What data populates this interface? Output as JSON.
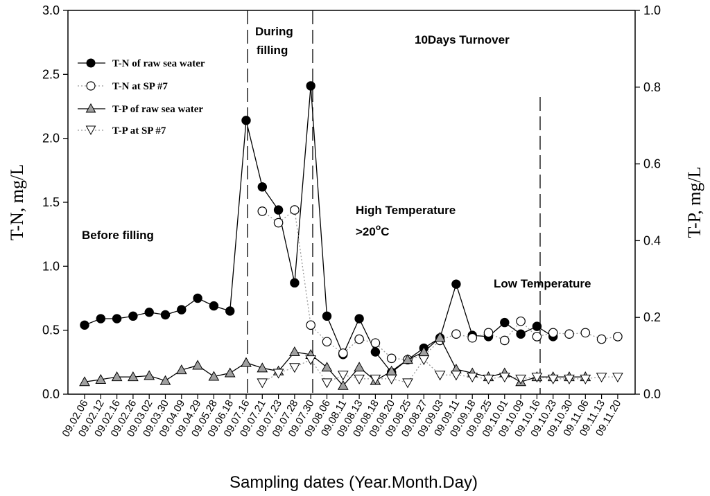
{
  "chart_data": {
    "type": "line",
    "xlabel": "Sampling dates (Year.Month.Day)",
    "ylabel_left": "T-N, mg/L",
    "ylabel_right": "T-P, mg/L",
    "ylim_left": [
      0,
      3.0
    ],
    "ylim_right": [
      0,
      1.0
    ],
    "yticks_left": [
      "0.0",
      "0.5",
      "1.0",
      "1.5",
      "2.0",
      "2.5",
      "3.0"
    ],
    "yticks_right": [
      "0.0",
      "0.2",
      "0.4",
      "0.6",
      "0.8",
      "1.0"
    ],
    "yticks_left_values": [
      0,
      0.5,
      1.0,
      1.5,
      2.0,
      2.5,
      3.0
    ],
    "yticks_right_values": [
      0,
      0.2,
      0.4,
      0.6,
      0.8,
      1.0
    ],
    "categories": [
      "09.02.06",
      "09.02.12",
      "09.02.16",
      "09.02.26",
      "09.03.02",
      "09.03.30",
      "09.04.09",
      "09.04.29",
      "09.05.28",
      "09.06.18",
      "09.07.16",
      "09.07.21",
      "09.07.23",
      "09.07.28",
      "09.07.30",
      "09.08.06",
      "09.08.11",
      "09.08.13",
      "09.08.18",
      "09.08.20",
      "09.08.25",
      "09.08.27",
      "09.09.03",
      "09.09.11",
      "09.09.18",
      "09.09.25",
      "09.10.01",
      "09.10.09",
      "09.10.16",
      "09.10.23",
      "09.10.30",
      "09.11.06",
      "09.11.13",
      "09.11.20"
    ],
    "series": [
      {
        "name": "T-N of raw sea water",
        "axis": "left",
        "marker": "filled-circle",
        "line": "solid",
        "points": [
          [
            0,
            0.54
          ],
          [
            1,
            0.59
          ],
          [
            2,
            0.59
          ],
          [
            3,
            0.61
          ],
          [
            4,
            0.64
          ],
          [
            5,
            0.62
          ],
          [
            6,
            0.66
          ],
          [
            7,
            0.75
          ],
          [
            8,
            0.69
          ],
          [
            9,
            0.65
          ],
          [
            10,
            2.14
          ],
          [
            11,
            1.62
          ],
          [
            12,
            1.44
          ],
          [
            13,
            0.87
          ],
          [
            14,
            2.41
          ],
          [
            15,
            0.61
          ],
          [
            16,
            0.31
          ],
          [
            17,
            0.59
          ],
          [
            18,
            0.33
          ],
          [
            19,
            0.17
          ],
          [
            20,
            0.27
          ],
          [
            21,
            0.36
          ],
          [
            22,
            0.44
          ],
          [
            23,
            0.86
          ],
          [
            24,
            0.46
          ],
          [
            25,
            0.45
          ],
          [
            26,
            0.56
          ],
          [
            27,
            0.47
          ],
          [
            28,
            0.53
          ],
          [
            29,
            0.45
          ]
        ]
      },
      {
        "name": "T-N at SP #7",
        "axis": "left",
        "marker": "open-circle",
        "line": "dotted",
        "points": [
          [
            11,
            1.43
          ],
          [
            12,
            1.34
          ],
          [
            13,
            1.44
          ],
          [
            14,
            0.54
          ],
          [
            15,
            0.41
          ],
          [
            16,
            0.32
          ],
          [
            17,
            0.43
          ],
          [
            18,
            0.4
          ],
          [
            19,
            0.28
          ],
          [
            20,
            0.27
          ],
          [
            21,
            0.3
          ],
          [
            22,
            0.42
          ],
          [
            23,
            0.47
          ],
          [
            24,
            0.44
          ],
          [
            25,
            0.48
          ],
          [
            26,
            0.42
          ],
          [
            27,
            0.57
          ],
          [
            28,
            0.45
          ],
          [
            29,
            0.48
          ],
          [
            30,
            0.47
          ],
          [
            31,
            0.48
          ],
          [
            32,
            0.43
          ],
          [
            33,
            0.45
          ]
        ]
      },
      {
        "name": "T-P of raw sea water",
        "axis": "right",
        "marker": "filled-triangle-up",
        "line": "solid",
        "points": [
          [
            0,
            0.032
          ],
          [
            1,
            0.038
          ],
          [
            2,
            0.045
          ],
          [
            3,
            0.045
          ],
          [
            4,
            0.048
          ],
          [
            5,
            0.035
          ],
          [
            6,
            0.063
          ],
          [
            7,
            0.075
          ],
          [
            8,
            0.046
          ],
          [
            9,
            0.055
          ],
          [
            10,
            0.082
          ],
          [
            11,
            0.068
          ],
          [
            12,
            0.06
          ],
          [
            13,
            0.11
          ],
          [
            14,
            0.103
          ],
          [
            15,
            0.07
          ],
          [
            16,
            0.022
          ],
          [
            17,
            0.07
          ],
          [
            18,
            0.035
          ],
          [
            19,
            0.06
          ],
          [
            20,
            0.09
          ],
          [
            21,
            0.11
          ],
          [
            22,
            0.148
          ],
          [
            23,
            0.065
          ],
          [
            24,
            0.055
          ],
          [
            25,
            0.045
          ],
          [
            26,
            0.055
          ],
          [
            27,
            0.032
          ],
          [
            28,
            0.045
          ],
          [
            29,
            0.045
          ],
          [
            30,
            0.045
          ],
          [
            31,
            0.045
          ]
        ]
      },
      {
        "name": "T-P at SP #7",
        "axis": "right",
        "marker": "open-triangle-down",
        "line": "dotted",
        "points": [
          [
            11,
            0.03
          ],
          [
            12,
            0.055
          ],
          [
            13,
            0.07
          ],
          [
            14,
            0.09
          ],
          [
            15,
            0.03
          ],
          [
            16,
            0.05
          ],
          [
            17,
            0.04
          ],
          [
            18,
            0.04
          ],
          [
            19,
            0.04
          ],
          [
            20,
            0.03
          ],
          [
            21,
            0.09
          ],
          [
            22,
            0.05
          ],
          [
            23,
            0.05
          ],
          [
            24,
            0.045
          ],
          [
            25,
            0.04
          ],
          [
            26,
            0.045
          ],
          [
            27,
            0.04
          ],
          [
            28,
            0.045
          ],
          [
            29,
            0.04
          ],
          [
            30,
            0.04
          ],
          [
            31,
            0.04
          ],
          [
            32,
            0.045
          ],
          [
            33,
            0.045
          ]
        ]
      }
    ],
    "annotations": {
      "before_filling": "Before filling",
      "during_filling_1": "During",
      "during_filling_2": "filling",
      "turnover": "10Days Turnover",
      "high_temp_1": "High Temperature",
      "high_temp_2_prefix": ">20",
      "high_temp_2_sup": "o",
      "high_temp_2_suffix": "C",
      "low_temp": "Low Temperature"
    },
    "legend": [
      "T-N of raw sea water",
      "T-N at SP #7",
      "T-P of raw sea water",
      "T-P at SP #7"
    ],
    "legend_position": "top-left",
    "grid": false
  },
  "colors": {
    "axis": "#000000",
    "filled_circle": "#000000",
    "open_marker_fill": "#ffffff",
    "triangle_fill": "#a0a0a0",
    "dotted_line": "#999999"
  }
}
